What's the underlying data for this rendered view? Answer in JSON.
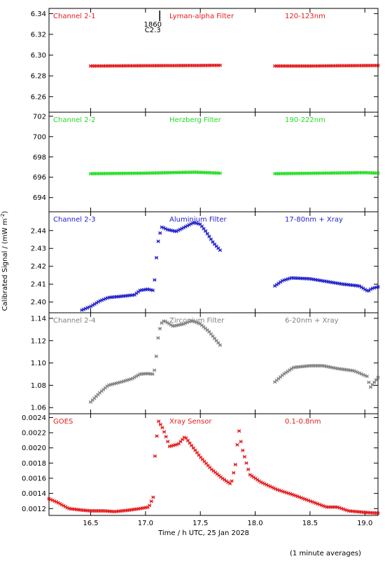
{
  "figure": {
    "ylabel": "Calibrated Signal / (mW m",
    "ylabel_sup": "-2",
    "ylabel_close": ")",
    "xlabel": "Time / h UTC, 25 Jan 2028",
    "footnote": "(1 minute averages)",
    "flare_marker": {
      "time": 17.13,
      "label_top": "1860",
      "label_bottom": "C2.3"
    }
  },
  "colors": {
    "red": "#e41a1c",
    "green": "#22dd22",
    "blue": "#1f1fcc",
    "grey": "#808080",
    "axis": "#000000"
  },
  "chart_data": [
    {
      "type": "scatter",
      "labels": {
        "channel": "Channel 2-1",
        "filter": "Lyman-alpha Filter",
        "band": "120-123nm"
      },
      "color": "#e41a1c",
      "xlim": [
        16.12,
        19.12
      ],
      "ylim": [
        6.245,
        6.345
      ],
      "yticks": [
        6.26,
        6.28,
        6.3,
        6.32,
        6.34
      ],
      "ytick_labels": [
        "6.26",
        "6.28",
        "6.30",
        "6.32",
        "6.34"
      ],
      "segments": [
        {
          "points": [
            [
              16.5,
              6.2895
            ],
            [
              17.0,
              6.2898
            ],
            [
              17.5,
              6.29
            ],
            [
              17.68,
              6.2902
            ]
          ]
        },
        {
          "points": [
            [
              18.18,
              6.2895
            ],
            [
              18.5,
              6.2895
            ],
            [
              18.8,
              6.2898
            ],
            [
              19.12,
              6.29
            ]
          ]
        }
      ]
    },
    {
      "type": "scatter",
      "labels": {
        "channel": "Channel 2-2",
        "filter": "Herzberg Filter",
        "band": "190-222nm"
      },
      "color": "#22dd22",
      "xlim": [
        16.12,
        19.12
      ],
      "ylim": [
        692.6,
        702.4
      ],
      "yticks": [
        694,
        696,
        698,
        700,
        702
      ],
      "ytick_labels": [
        "694",
        "696",
        "698",
        "700",
        "702"
      ],
      "segments": [
        {
          "points": [
            [
              16.5,
              696.35
            ],
            [
              17.0,
              696.4
            ],
            [
              17.45,
              696.5
            ],
            [
              17.68,
              696.4
            ]
          ]
        },
        {
          "points": [
            [
              18.18,
              696.35
            ],
            [
              18.6,
              696.4
            ],
            [
              19.0,
              696.45
            ],
            [
              19.12,
              696.4
            ]
          ]
        }
      ]
    },
    {
      "type": "scatter",
      "labels": {
        "channel": "Channel 2-3",
        "filter": "Aluminium Filter",
        "band": "17-80nm + Xray"
      },
      "color": "#1f1fcc",
      "xlim": [
        16.12,
        19.12
      ],
      "ylim": [
        2.394,
        2.4505
      ],
      "yticks": [
        2.4,
        2.41,
        2.42,
        2.43,
        2.44
      ],
      "ytick_labels": [
        "2.40",
        "2.41",
        "2.42",
        "2.43",
        "2.44"
      ],
      "segments": [
        {
          "points": [
            [
              16.42,
              2.3955
            ],
            [
              16.5,
              2.3975
            ],
            [
              16.58,
              2.4005
            ],
            [
              16.66,
              2.4025
            ],
            [
              16.78,
              2.4032
            ],
            [
              16.9,
              2.404
            ],
            [
              16.95,
              2.4065
            ],
            [
              17.02,
              2.4072
            ],
            [
              17.07,
              2.4065
            ],
            [
              17.08,
              2.41
            ],
            [
              17.1,
              2.425
            ],
            [
              17.12,
              2.436
            ],
            [
              17.15,
              2.442
            ],
            [
              17.2,
              2.4405
            ],
            [
              17.28,
              2.4395
            ],
            [
              17.36,
              2.442
            ],
            [
              17.44,
              2.4445
            ],
            [
              17.5,
              2.4435
            ],
            [
              17.55,
              2.4395
            ],
            [
              17.62,
              2.433
            ],
            [
              17.68,
              2.429
            ]
          ]
        },
        {
          "points": [
            [
              18.18,
              2.409
            ],
            [
              18.25,
              2.412
            ],
            [
              18.33,
              2.4135
            ],
            [
              18.5,
              2.413
            ],
            [
              18.65,
              2.4115
            ],
            [
              18.8,
              2.41
            ],
            [
              18.95,
              2.409
            ],
            [
              19.03,
              2.406
            ],
            [
              19.06,
              2.4075
            ],
            [
              19.12,
              2.4085
            ]
          ]
        }
      ]
    },
    {
      "type": "scatter",
      "labels": {
        "channel": "Channel 2-4",
        "filter": "Zirconium Filter",
        "band": "6-20nm + Xray"
      },
      "color": "#808080",
      "xlim": [
        16.12,
        19.12
      ],
      "ylim": [
        1.0545,
        1.145
      ],
      "yticks": [
        1.06,
        1.08,
        1.1,
        1.12,
        1.14
      ],
      "ytick_labels": [
        "1.06",
        "1.08",
        "1.10",
        "1.12",
        "1.14"
      ],
      "segments": [
        {
          "points": [
            [
              16.5,
              1.065
            ],
            [
              16.58,
              1.073
            ],
            [
              16.66,
              1.08
            ],
            [
              16.78,
              1.083
            ],
            [
              16.88,
              1.086
            ],
            [
              16.95,
              1.09
            ],
            [
              17.02,
              1.0905
            ],
            [
              17.07,
              1.09
            ],
            [
              17.09,
              1.096
            ],
            [
              17.11,
              1.12
            ],
            [
              17.14,
              1.135
            ],
            [
              17.17,
              1.138
            ],
            [
              17.25,
              1.133
            ],
            [
              17.35,
              1.135
            ],
            [
              17.42,
              1.138
            ],
            [
              17.5,
              1.135
            ],
            [
              17.58,
              1.128
            ],
            [
              17.68,
              1.116
            ]
          ]
        },
        {
          "points": [
            [
              18.18,
              1.083
            ],
            [
              18.26,
              1.09
            ],
            [
              18.35,
              1.096
            ],
            [
              18.5,
              1.0975
            ],
            [
              18.62,
              1.0975
            ],
            [
              18.75,
              1.095
            ],
            [
              18.9,
              1.093
            ],
            [
              19.02,
              1.088
            ],
            [
              19.05,
              1.078
            ],
            [
              19.12,
              1.087
            ]
          ]
        }
      ]
    },
    {
      "type": "scatter",
      "labels": {
        "channel": "GOES",
        "filter": "Xray Sensor",
        "band": "0.1-0.8nm"
      },
      "color": "#e41a1c",
      "xlim": [
        16.12,
        19.12
      ],
      "ylim": [
        0.00111,
        0.00245
      ],
      "yticks": [
        0.0012,
        0.0014,
        0.0016,
        0.0018,
        0.002,
        0.0022,
        0.0024
      ],
      "ytick_labels": [
        "0.0012",
        "0.0014",
        "0.0016",
        "0.0018",
        "0.0020",
        "0.0022",
        "0.0024"
      ],
      "segments": [
        {
          "points": [
            [
              16.12,
              0.00133
            ],
            [
              16.2,
              0.00128
            ],
            [
              16.3,
              0.0012
            ],
            [
              16.42,
              0.00118
            ],
            [
              16.5,
              0.00117
            ],
            [
              16.62,
              0.00117
            ],
            [
              16.72,
              0.00116
            ],
            [
              16.85,
              0.00118
            ],
            [
              16.95,
              0.0012
            ],
            [
              17.03,
              0.00122
            ],
            [
              17.07,
              0.00135
            ],
            [
              17.09,
              0.002
            ],
            [
              17.12,
              0.00235
            ],
            [
              17.16,
              0.00225
            ],
            [
              17.22,
              0.00202
            ],
            [
              17.3,
              0.00205
            ],
            [
              17.36,
              0.00215
            ],
            [
              17.42,
              0.00203
            ],
            [
              17.5,
              0.00188
            ],
            [
              17.6,
              0.00172
            ],
            [
              17.7,
              0.0016
            ],
            [
              17.78,
              0.00152
            ],
            [
              17.82,
              0.00178
            ],
            [
              17.85,
              0.00225
            ],
            [
              17.88,
              0.002
            ],
            [
              17.95,
              0.00165
            ],
            [
              18.05,
              0.00155
            ],
            [
              18.2,
              0.00145
            ],
            [
              18.35,
              0.00138
            ],
            [
              18.5,
              0.0013
            ],
            [
              18.65,
              0.00122
            ],
            [
              18.75,
              0.00122
            ],
            [
              18.85,
              0.00117
            ],
            [
              19.0,
              0.00115
            ],
            [
              19.12,
              0.00114
            ]
          ]
        }
      ]
    }
  ],
  "x_axis": {
    "ticks": [
      16.5,
      17.0,
      17.5,
      18.0,
      18.5,
      19.0
    ],
    "tick_labels": [
      "16.5",
      "17.0",
      "17.5",
      "18.0",
      "18.5",
      "19.0"
    ]
  }
}
